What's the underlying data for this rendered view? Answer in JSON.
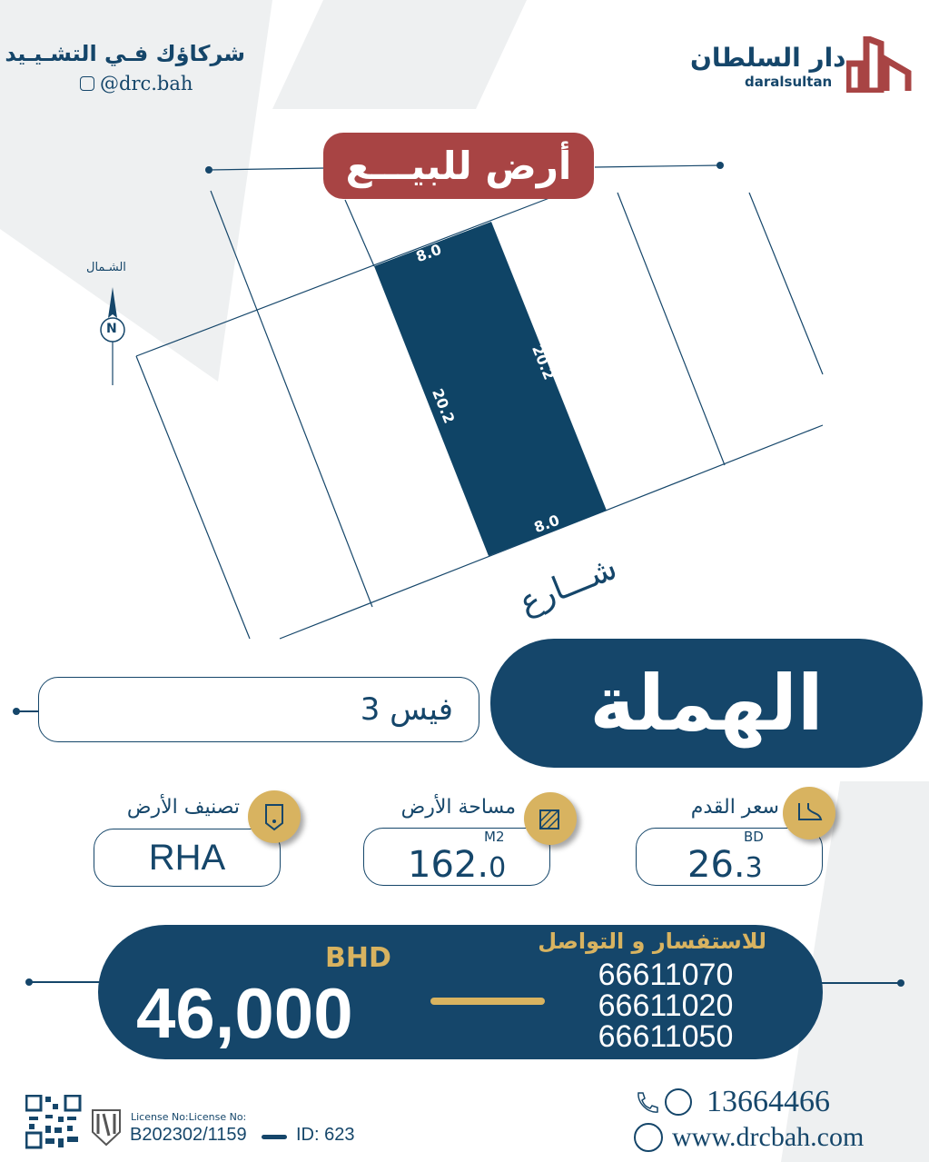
{
  "header": {
    "slogan": "شركاؤك فـي التشـيـيد",
    "instagram": "@drc.bah",
    "brand_ar": "دار السلطان",
    "brand_en": "daralsultan"
  },
  "title_badge": "أرض للبيـــع",
  "map": {
    "north_label": "الشـمال",
    "north_letter": "N",
    "dimensions": {
      "top": "8.0",
      "bottom": "8.0",
      "left": "20.2",
      "right": "20.2"
    },
    "street_label": "شـــارع"
  },
  "location": {
    "area": "الهملة",
    "phase": "فيس 3"
  },
  "specs": [
    {
      "label": "سعر القدم",
      "value": "26.",
      "value_small": "3",
      "unit": "BD",
      "icon": "foot-icon"
    },
    {
      "label": "مساحة الأرض",
      "value": "162.",
      "value_small": "0",
      "unit": "M2",
      "icon": "area-icon"
    },
    {
      "label": "تصنيف الأرض",
      "value": "RHA",
      "icon": "land-tag-icon"
    }
  ],
  "price": {
    "currency": "BHD",
    "amount": "46,000"
  },
  "contact": {
    "heading": "للاستفسار و التواصل",
    "phones": [
      "66611070",
      "66611020",
      "66611050"
    ]
  },
  "footer": {
    "license_label": "License No:License No:",
    "license_number": "B202302/1159",
    "id": "ID: 623",
    "phone": "13664466",
    "website": "www.drcbah.com"
  },
  "colors": {
    "navy": "#15466a",
    "red": "#a84444",
    "gold": "#d8b360"
  }
}
